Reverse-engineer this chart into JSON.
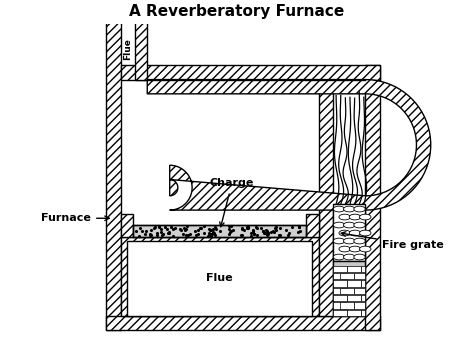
{
  "title": "A Reverberatory Furnace",
  "title_fontsize": 11,
  "bg_color": "#ffffff",
  "line_color": "#000000",
  "labels": {
    "flue_chimney": "Flue",
    "charge": "Charge",
    "furnace": "Furnace",
    "flue_box": "Flue",
    "fire_grate": "Fire grate"
  },
  "figsize": [
    4.74,
    3.55
  ],
  "dpi": 100,
  "xlim": [
    0,
    10
  ],
  "ylim": [
    0,
    8
  ]
}
